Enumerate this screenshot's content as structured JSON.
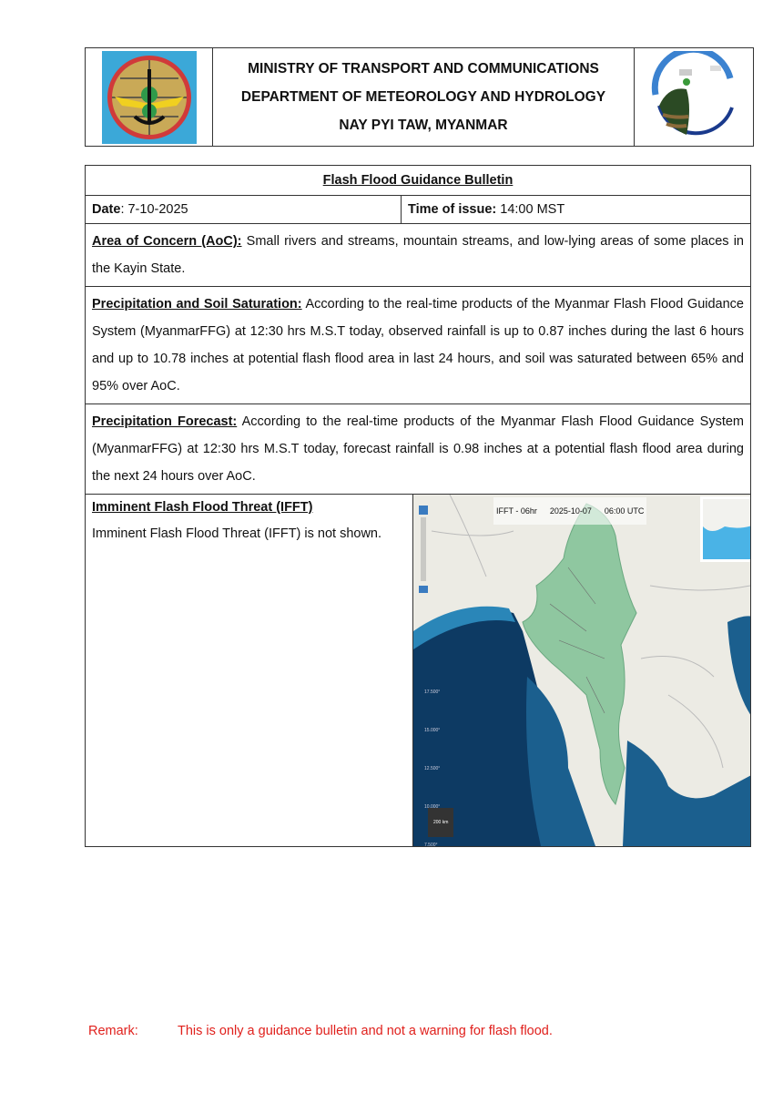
{
  "header": {
    "line1": "MINISTRY OF TRANSPORT AND COMMUNICATIONS",
    "line2": "DEPARTMENT OF METEOROLOGY AND HYDROLOGY",
    "line3": "NAY PYI TAW, MYANMAR"
  },
  "bulletin": {
    "title": "Flash Flood Guidance Bulletin",
    "date_label": "Date",
    "date_value": ": 7-10-2025",
    "time_label": "Time of issue:",
    "time_value": " 14:00 MST",
    "aoc_label": "Area of Concern (AoC):",
    "aoc_text": "  Small rivers and streams, mountain streams, and low-lying areas of some places in the Kayin State.",
    "precip_label": "Precipitation and Soil Saturation:",
    "precip_text": " According to the real-time products of the Myanmar Flash Flood Guidance System (MyanmarFFG) at 12:30 hrs M.S.T today, observed rainfall is up to 0.87 inches during the last 6 hours and up to 10.78 inches at potential flash flood area in last 24 hours, and soil was saturated between 65% and 95% over AoC.",
    "forecast_label": "Precipitation Forecast:",
    "forecast_text": " According to the real-time products of the Myanmar Flash Flood Guidance System (MyanmarFFG) at 12:30 hrs M.S.T today, forecast rainfall is 0.98 inches at a potential flash flood area during the next 24 hours over AoC.",
    "ifft_label": "Imminent Flash Flood Threat (IFFT)",
    "ifft_text": "Imminent Flash Flood Threat (IFFT) is not shown."
  },
  "map": {
    "product": "IFFT - 06hr",
    "date": "2025-10-07",
    "time": "06:00 UTC",
    "scale": "200 km",
    "lat_labels": [
      "17.500°",
      "15.000°",
      "12.500°",
      "10.000°",
      "7.500°"
    ],
    "colors": {
      "land": "#ecebe4",
      "sea": "#1b5f8e",
      "deep_sea": "#0d3a63",
      "myanmar": "#8fc7a0"
    }
  },
  "remark": {
    "label": "Remark:",
    "text": "This is only a guidance bulletin and not a warning for flash flood."
  }
}
